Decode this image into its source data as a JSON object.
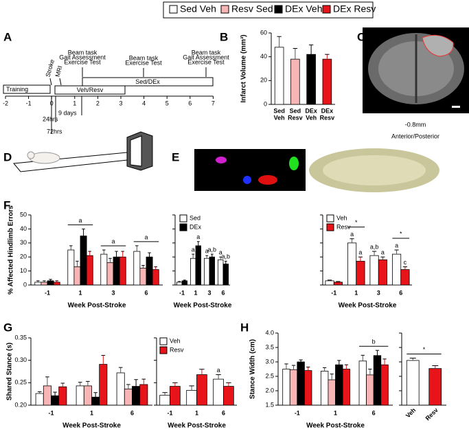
{
  "panel_labels": [
    "A",
    "B",
    "C",
    "D",
    "E",
    "F",
    "G",
    "H"
  ],
  "legend": {
    "entries": [
      {
        "name": "Sed Veh",
        "color": "#ffffff"
      },
      {
        "name": "Resv Sed",
        "color": "#f7b5b5"
      },
      {
        "name": "DEx Veh",
        "color": "#000000"
      },
      {
        "name": "DEx Resv",
        "color": "#e8141a"
      }
    ]
  },
  "timeline": {
    "ticks": [
      -2,
      -1,
      0,
      1,
      2,
      3,
      4,
      5,
      6,
      7
    ],
    "phases": [
      "Training",
      "Veh/Resv",
      "Sed/DEx"
    ],
    "events": [
      [
        "Stroke"
      ],
      [
        "MRI"
      ],
      [
        "Beam task",
        "Gait Assessment",
        "Exercise Test"
      ],
      [
        "Beam task",
        "Exercise Test"
      ],
      [
        "Beam task",
        "Gait Assessment",
        "Exercise Test"
      ]
    ],
    "intervals": [
      "24hrs",
      "72hrs",
      "9 days"
    ]
  },
  "mri": {
    "section": "-0.8mm",
    "axis": "Anterior/Posterior"
  },
  "chart_data": [
    {
      "type": "bar",
      "ylabel": "Infarct Volume (mm³)",
      "categories": [
        [
          "Sed",
          "Veh"
        ],
        [
          "Sed",
          "Resv"
        ],
        [
          "DEx",
          "Veh"
        ],
        [
          "DEx",
          "Resv"
        ]
      ],
      "values": [
        48,
        38,
        42,
        38
      ],
      "errors": [
        9,
        9,
        8,
        4
      ],
      "colors": [
        "#ffffff",
        "#f7b5b5",
        "#000000",
        "#e8141a"
      ],
      "ylim": [
        0,
        60
      ],
      "yticks": [
        0,
        20,
        40,
        60
      ]
    },
    {
      "type": "bar",
      "ylabel": "% Affected Hindlimb Errors",
      "xlabel": "Week Post-Stroke",
      "categories": [
        "-1",
        "1",
        "3",
        "6"
      ],
      "ylim": [
        0,
        50
      ],
      "yticks": [
        0,
        10,
        20,
        30,
        40,
        50
      ],
      "series": [
        {
          "color": "#ffffff",
          "values": [
            2,
            25,
            22,
            24
          ],
          "errors": [
            1,
            3,
            3,
            4
          ]
        },
        {
          "color": "#f7b5b5",
          "values": [
            2,
            13,
            16,
            12
          ],
          "errors": [
            1,
            4,
            3,
            2
          ]
        },
        {
          "color": "#000000",
          "values": [
            3,
            35,
            20,
            20
          ],
          "errors": [
            1,
            5,
            4,
            3
          ]
        },
        {
          "color": "#e8141a",
          "values": [
            2,
            21,
            20,
            11
          ],
          "errors": [
            1,
            3,
            4,
            2
          ]
        }
      ],
      "brackets": [
        {
          "label": "a",
          "category": 1
        },
        {
          "label": "a",
          "category": 2
        },
        {
          "label": "a",
          "category": 3
        }
      ]
    },
    {
      "type": "bar",
      "xlabel": "Week Post-Stroke",
      "categories": [
        "-1",
        "1",
        "3",
        "6"
      ],
      "ylim": [
        0,
        50
      ],
      "yticks": [
        0,
        10,
        20,
        30,
        40,
        50
      ],
      "series": [
        {
          "name": "Sed",
          "color": "#ffffff",
          "values": [
            2,
            19,
            19,
            18
          ],
          "errors": [
            0.5,
            3,
            2,
            2
          ],
          "letters": [
            null,
            "a",
            "a",
            "a"
          ]
        },
        {
          "name": "DEx",
          "color": "#000000",
          "values": [
            3,
            28,
            20,
            15
          ],
          "errors": [
            0.5,
            3,
            2,
            2
          ],
          "letters": [
            null,
            "a",
            "a,b",
            "a,b"
          ]
        }
      ]
    },
    {
      "type": "bar",
      "xlabel": "Week Post-Stroke",
      "categories": [
        "-1",
        "1",
        "3",
        "6"
      ],
      "ylim": [
        0,
        50
      ],
      "yticks": [
        0,
        10,
        20,
        30,
        40,
        50
      ],
      "series": [
        {
          "name": "Veh",
          "color": "#ffffff",
          "values": [
            3,
            30,
            21,
            22
          ],
          "errors": [
            0.5,
            3,
            3,
            3
          ],
          "letters": [
            null,
            "a",
            "a,b",
            "a"
          ]
        },
        {
          "name": "Resv",
          "color": "#e8141a",
          "values": [
            2,
            17,
            18,
            11
          ],
          "errors": [
            0.5,
            3,
            2,
            2
          ],
          "letters": [
            null,
            "a",
            "a",
            "c"
          ]
        }
      ],
      "brackets": [
        {
          "label": "*",
          "category": 1
        },
        {
          "label": "*",
          "category": 3
        }
      ]
    },
    {
      "type": "bar",
      "ylabel": "Shared Stance (s)",
      "xlabel": "Week Post-Stroke",
      "categories": [
        "-1",
        "1",
        "6"
      ],
      "ylim": [
        0.2,
        0.35
      ],
      "yticks": [
        {
          "value": 0.2,
          "label": "0.20"
        },
        0.25,
        {
          "value": 0.3,
          "label": "0.30"
        },
        0.35
      ],
      "series": [
        {
          "color": "#ffffff",
          "values": [
            0.226,
            0.243,
            0.272
          ],
          "errors": [
            0.004,
            0.008,
            0.012
          ]
        },
        {
          "color": "#f7b5b5",
          "values": [
            0.243,
            0.243,
            0.236
          ],
          "errors": [
            0.02,
            0.01,
            0.01
          ]
        },
        {
          "color": "#000000",
          "values": [
            0.221,
            0.218,
            0.242
          ],
          "errors": [
            0.008,
            0.01,
            0.015
          ]
        },
        {
          "color": "#e8141a",
          "values": [
            0.241,
            0.291,
            0.246
          ],
          "errors": [
            0.008,
            0.02,
            0.012
          ]
        }
      ]
    },
    {
      "type": "bar",
      "xlabel": "Week Post-Stroke",
      "categories": [
        "-1",
        "1",
        "6"
      ],
      "ylim": [
        0.2,
        0.35
      ],
      "yticks": [
        {
          "value": 0.2,
          "label": "0.20"
        },
        0.25,
        {
          "value": 0.3,
          "label": "0.30"
        },
        0.35
      ],
      "series": [
        {
          "name": "Veh",
          "color": "#ffffff",
          "values": [
            0.222,
            0.233,
            0.258
          ],
          "errors": [
            0.006,
            0.01,
            0.01
          ],
          "letters": [
            null,
            null,
            "a"
          ]
        },
        {
          "name": "Resv",
          "color": "#e8141a",
          "values": [
            0.242,
            0.268,
            0.242
          ],
          "errors": [
            0.008,
            0.012,
            0.008
          ]
        }
      ]
    },
    {
      "type": "bar",
      "ylabel": "Stance Width (cm)",
      "xlabel": "Week Post-Stroke",
      "categories": [
        "-1",
        "1",
        "6"
      ],
      "ylim": [
        1.5,
        4
      ],
      "yticks": [
        1.5,
        {
          "value": 2,
          "label": "2.0"
        },
        2.5,
        {
          "value": 3,
          "label": "3.0"
        },
        3.5,
        {
          "value": 4,
          "label": "4.0"
        }
      ],
      "series": [
        {
          "color": "#ffffff",
          "values": [
            2.75,
            2.68,
            3.03
          ],
          "errors": [
            0.18,
            0.12,
            0.2
          ]
        },
        {
          "color": "#f7b5b5",
          "values": [
            2.73,
            2.38,
            2.55
          ],
          "errors": [
            0.15,
            0.2,
            0.2
          ]
        },
        {
          "color": "#000000",
          "values": [
            3.0,
            2.9,
            3.22
          ],
          "errors": [
            0.07,
            0.15,
            0.18
          ]
        },
        {
          "color": "#e8141a",
          "values": [
            2.7,
            2.75,
            2.9
          ],
          "errors": [
            0.12,
            0.15,
            0.2
          ]
        }
      ],
      "brackets": [
        {
          "label": "b",
          "category": 2
        }
      ]
    },
    {
      "type": "bar",
      "categories": [
        "Veh",
        "Resv"
      ],
      "values": [
        3.05,
        2.77
      ],
      "errors": [
        0.08,
        0.1
      ],
      "colors": [
        "#ffffff",
        "#e8141a"
      ],
      "ylim": [
        1.5,
        4
      ],
      "yticks": [
        1.5,
        {
          "value": 2,
          "label": "2.0"
        },
        2.5,
        {
          "value": 3,
          "label": "3.0"
        },
        3.5,
        {
          "value": 4,
          "label": "4.0"
        }
      ],
      "brackets": [
        {
          "label": "*"
        }
      ]
    }
  ]
}
